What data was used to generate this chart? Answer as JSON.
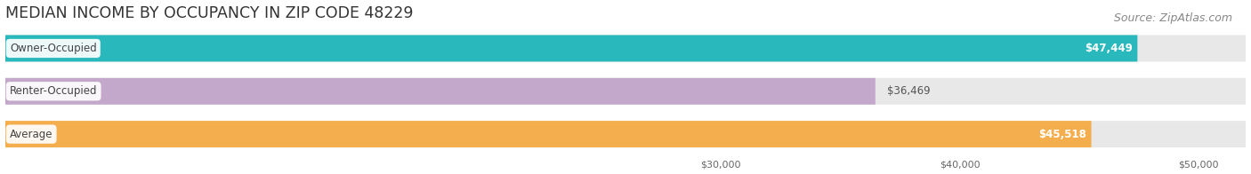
{
  "title": "MEDIAN INCOME BY OCCUPANCY IN ZIP CODE 48229",
  "source": "Source: ZipAtlas.com",
  "categories": [
    "Owner-Occupied",
    "Renter-Occupied",
    "Average"
  ],
  "values": [
    47449,
    36469,
    45518
  ],
  "bar_colors": [
    "#29B8BC",
    "#C4A8CC",
    "#F5AE4E"
  ],
  "value_labels": [
    "$47,449",
    "$36,469",
    "$45,518"
  ],
  "label_inside": [
    true,
    false,
    true
  ],
  "xlim_min": 0,
  "xlim_max": 52000,
  "xticks": [
    30000,
    40000,
    50000
  ],
  "xtick_labels": [
    "$30,000",
    "$40,000",
    "$50,000"
  ],
  "title_fontsize": 12.5,
  "source_fontsize": 9,
  "bar_label_fontsize": 8.5,
  "category_fontsize": 8.5,
  "title_color": "#333333",
  "source_color": "#888888",
  "background_color": "#ffffff",
  "bar_track_color": "#e8e8e8",
  "bar_height": 0.62
}
